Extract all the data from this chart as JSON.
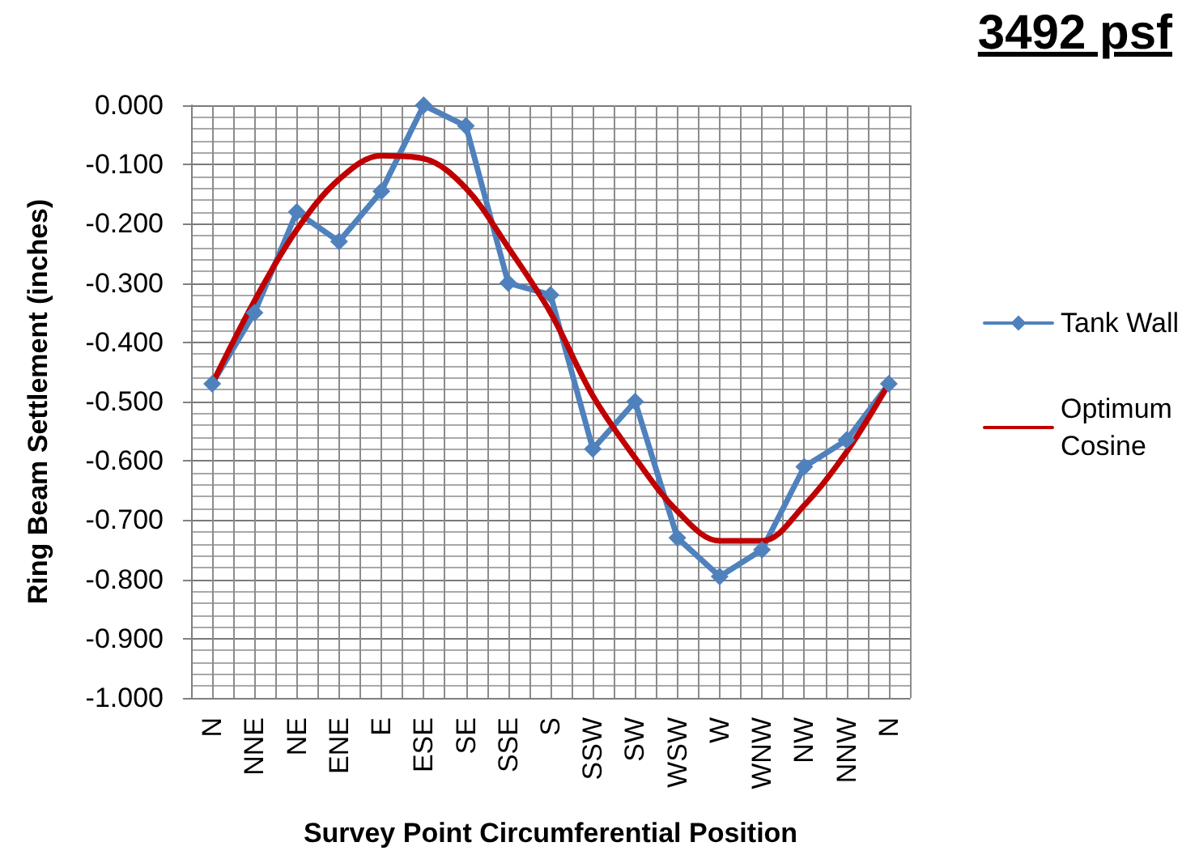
{
  "chart_data": {
    "type": "line",
    "title": "3492 psf",
    "xlabel": "Survey Point Circumferential Position",
    "ylabel": "Ring Beam Settlement (inches)",
    "categories": [
      "N",
      "NNE",
      "NE",
      "ENE",
      "E",
      "ESE",
      "SE",
      "SSE",
      "S",
      "SSW",
      "SW",
      "WSW",
      "W",
      "WNW",
      "NW",
      "NNW",
      "N"
    ],
    "series": [
      {
        "name": "Tank Wall",
        "color": "#4f81bd",
        "marker": "diamond",
        "values": [
          -0.47,
          -0.35,
          -0.18,
          -0.23,
          -0.145,
          0.0,
          -0.035,
          -0.3,
          -0.32,
          -0.58,
          -0.5,
          -0.73,
          -0.795,
          -0.75,
          -0.61,
          -0.565,
          -0.47
        ]
      },
      {
        "name": "Optimum Cosine",
        "color": "#c00000",
        "marker": "none",
        "values": [
          -0.47,
          -0.33,
          -0.21,
          -0.125,
          -0.085,
          -0.09,
          -0.14,
          -0.24,
          -0.35,
          -0.49,
          -0.595,
          -0.685,
          -0.735,
          -0.735,
          -0.675,
          -0.585,
          -0.47
        ]
      }
    ],
    "ylim": [
      -1,
      0
    ],
    "yticks": [
      {
        "value": -1,
        "label": "-1.000"
      },
      {
        "value": -0.9,
        "label": "-0.900"
      },
      {
        "value": -0.8,
        "label": "-0.800"
      },
      {
        "value": -0.7,
        "label": "-0.700"
      },
      {
        "value": -0.6,
        "label": "-0.600"
      },
      {
        "value": -0.5,
        "label": "-0.500"
      },
      {
        "value": -0.4,
        "label": "-0.400"
      },
      {
        "value": -0.3,
        "label": "-0.300"
      },
      {
        "value": -0.2,
        "label": "-0.200"
      },
      {
        "value": -0.1,
        "label": "-0.100"
      },
      {
        "value": 0,
        "label": "0.000"
      }
    ],
    "grid": true,
    "legend": "right"
  }
}
